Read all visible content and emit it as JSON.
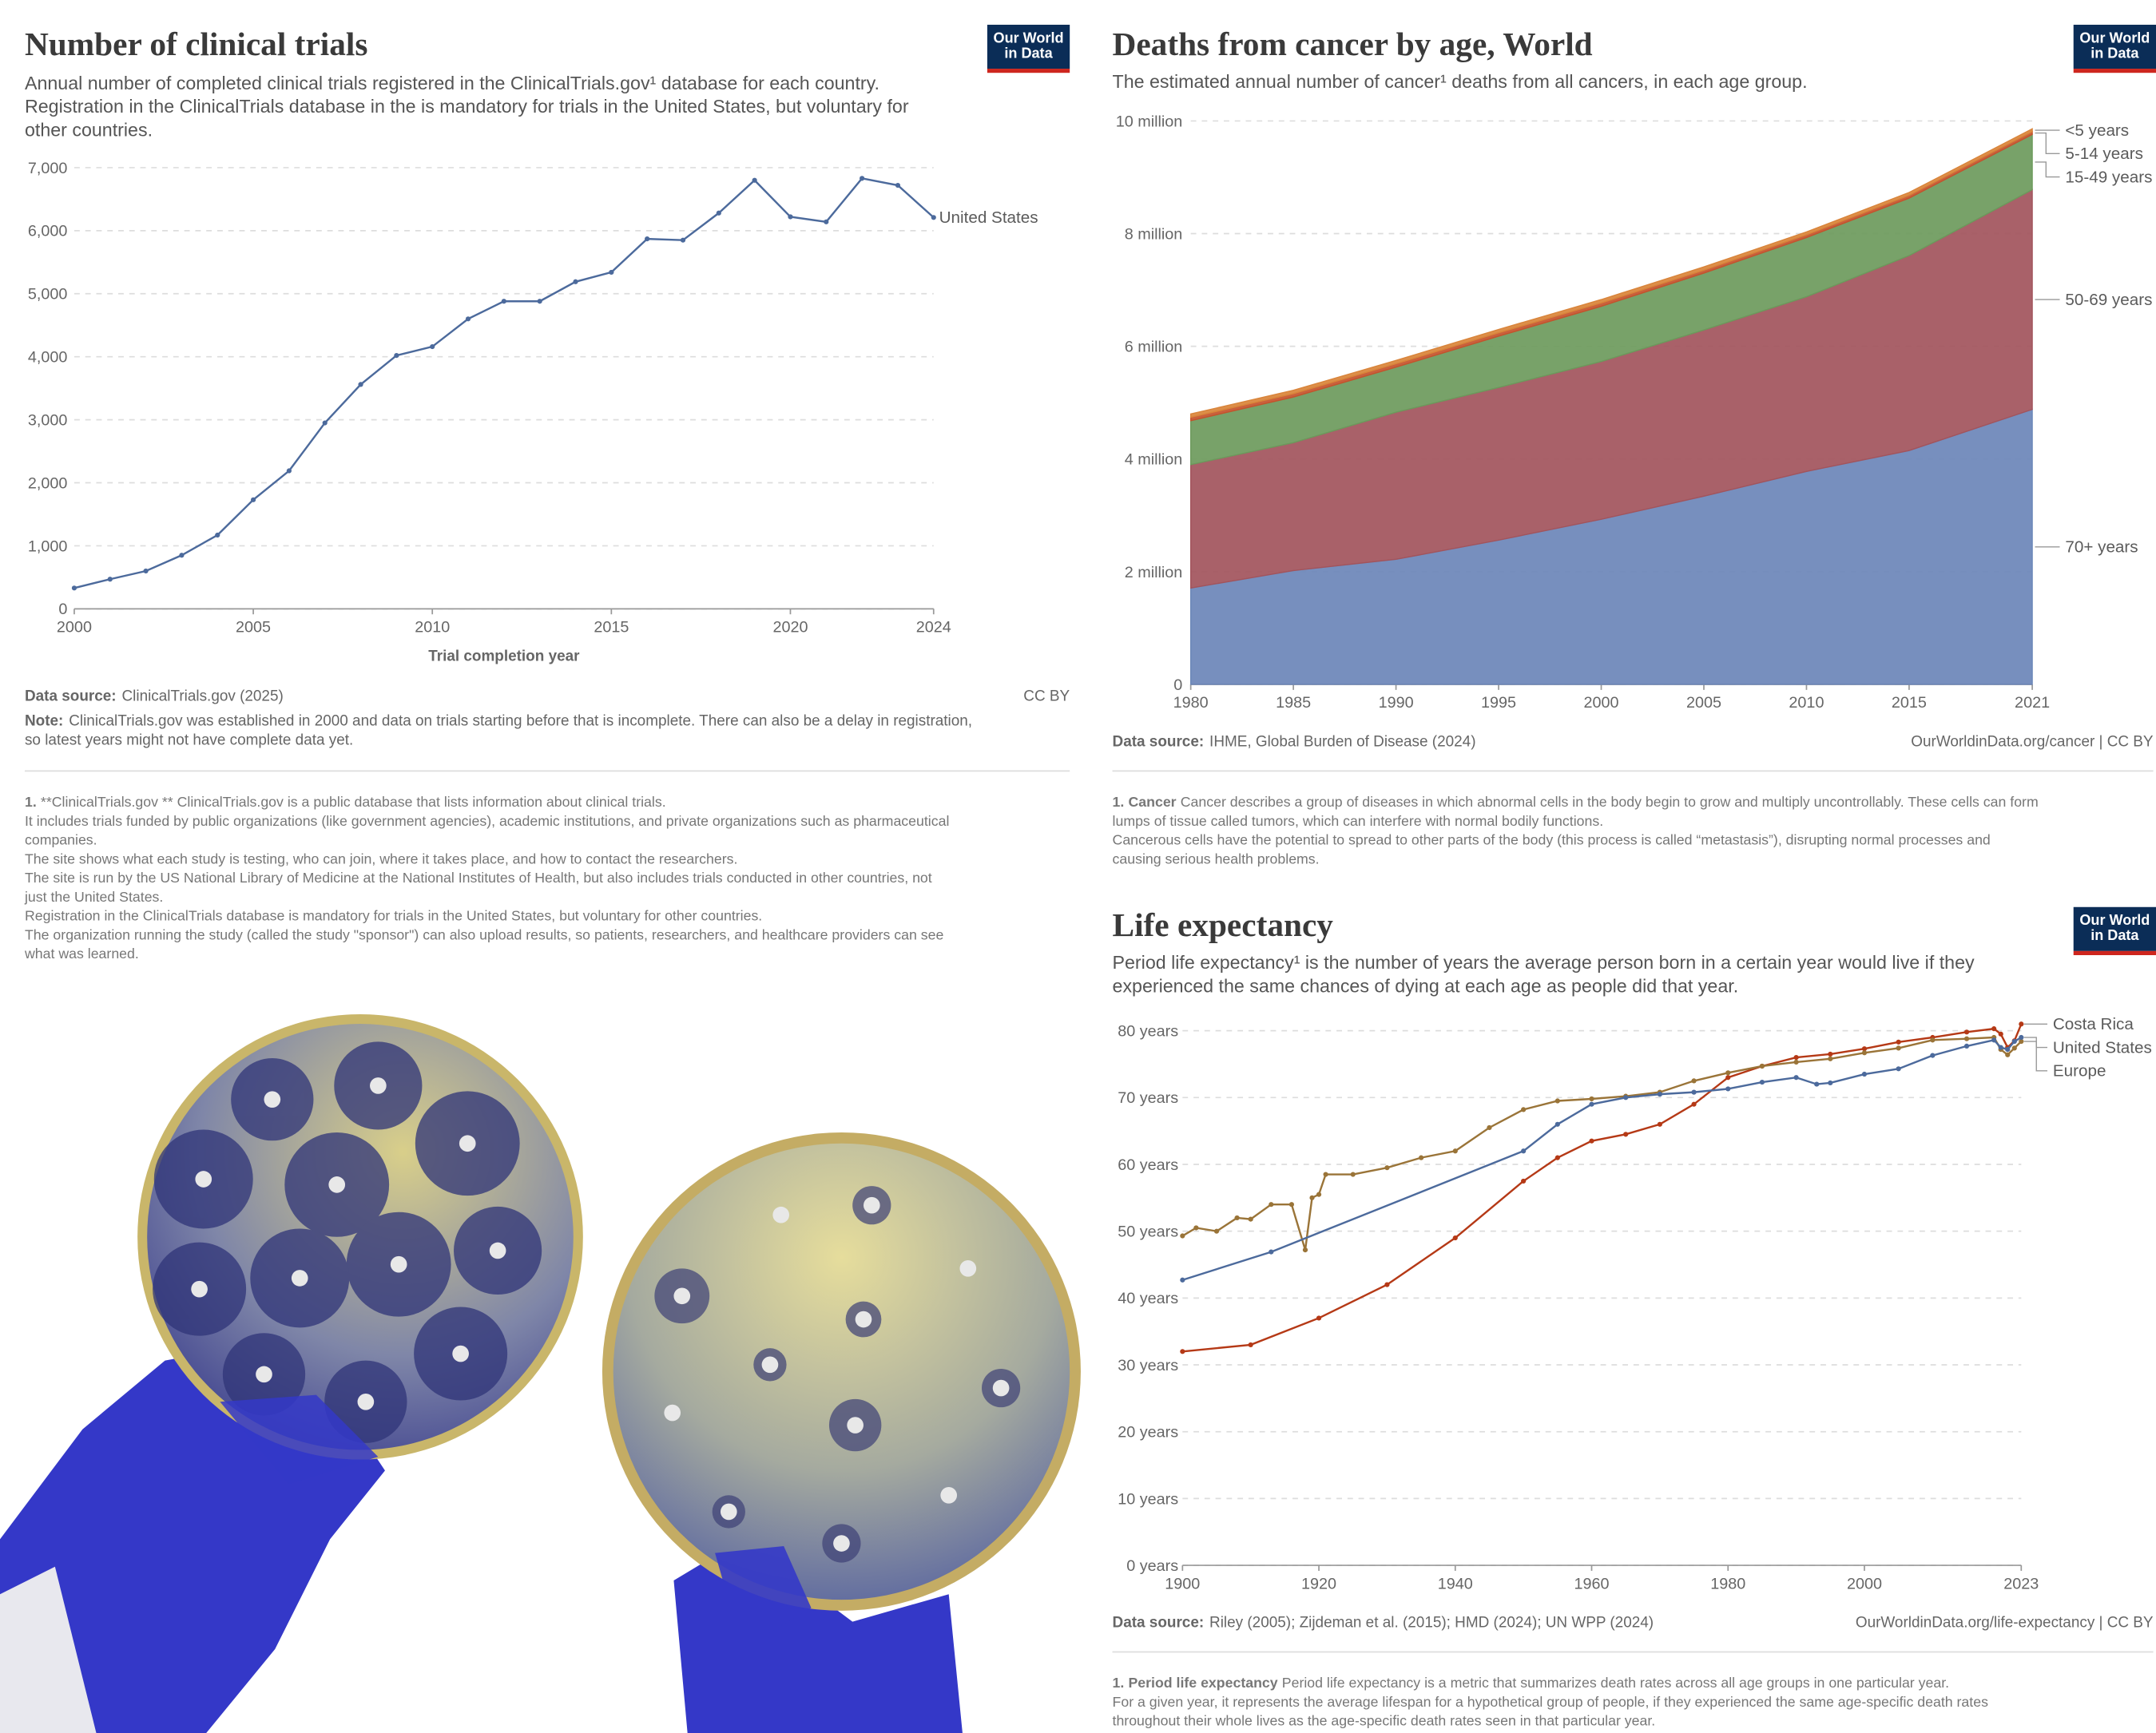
{
  "chart_data": [
    {
      "type": "line",
      "title": "Number of clinical trials",
      "subtitle": [
        "Annual number of completed clinical trials registered in the ClinicalTrials.gov¹ database for each country.",
        "Registration in the ClinicalTrials database in the is mandatory for trials in the United States, but voluntary for",
        "other countries."
      ],
      "logo": [
        "Our World",
        "in Data"
      ],
      "x_label": "Trial completion year",
      "xlim": [
        2000,
        2024
      ],
      "xticks": [
        2000,
        2005,
        2010,
        2015,
        2020,
        2024
      ],
      "ylim": [
        0,
        7000
      ],
      "yticks": [
        0,
        {
          "value": 1000,
          "label": "1,000"
        },
        {
          "value": 2000,
          "label": "2,000"
        },
        {
          "value": 3000,
          "label": "3,000"
        },
        {
          "value": 4000,
          "label": "4,000"
        },
        {
          "value": 5000,
          "label": "5,000"
        },
        {
          "value": 6000,
          "label": "6,000"
        },
        {
          "value": 7000,
          "label": "7,000"
        }
      ],
      "grid": true,
      "series": [
        {
          "name": "United States",
          "color": "#4c6a9c",
          "x": [
            2000,
            2001,
            2002,
            2003,
            2004,
            2005,
            2006,
            2007,
            2008,
            2009,
            2010,
            2011,
            2012,
            2013,
            2014,
            2015,
            2016,
            2017,
            2018,
            2019,
            2020,
            2021,
            2022,
            2023,
            2024
          ],
          "values": [
            330,
            470,
            600,
            850,
            1170,
            1730,
            2190,
            2950,
            3560,
            4020,
            4160,
            4600,
            4880,
            4880,
            5190,
            5340,
            5870,
            5850,
            6280,
            6800,
            6220,
            6140,
            6830,
            6720,
            6210
          ]
        }
      ],
      "source_label": "Data source:",
      "source": "ClinicalTrials.gov (2025)",
      "license": "CC BY",
      "note_label": "Note:",
      "note": [
        "ClinicalTrials.gov was established in 2000 and data on trials starting before that is incomplete. There can also be a delay in registration,",
        "so latest years might not have complete data yet."
      ],
      "footnote": {
        "marker": "1.",
        "lines": [
          "**ClinicalTrials.gov ** ClinicalTrials.gov is a public database that lists information about clinical trials.",
          "It includes trials funded by public organizations (like government agencies), academic institutions, and private organizations such as pharmaceutical",
          "companies.",
          "The site shows what each study is testing, who can join, where it takes place, and how to contact the researchers.",
          "The site is run by the US National Library of Medicine at the National Institutes of Health, but also includes trials conducted in other countries, not",
          "just the United States.",
          "Registration in the ClinicalTrials database is mandatory for trials in the United States, but voluntary for other countries.",
          "The organization running the study (called the study \"sponsor\") can also upload results, so patients, researchers, and healthcare providers can see",
          "what was learned."
        ]
      }
    },
    {
      "type": "area",
      "title": "Deaths from cancer by age, World",
      "subtitle": [
        "The estimated annual number of cancer¹ deaths from all cancers, in each age group."
      ],
      "logo": [
        "Our World",
        "in Data"
      ],
      "stacked": true,
      "x": [
        1980,
        1985,
        1990,
        1995,
        2000,
        2005,
        2010,
        2015,
        2021
      ],
      "xlim": [
        1980,
        2021
      ],
      "xticks": [
        1980,
        1985,
        1990,
        1995,
        2000,
        2005,
        2010,
        2015,
        2021
      ],
      "ylim": [
        0,
        10000000
      ],
      "yticks": [
        0,
        {
          "value": 2000000,
          "label": "2 million"
        },
        {
          "value": 4000000,
          "label": "4 million"
        },
        {
          "value": 6000000,
          "label": "6 million"
        },
        {
          "value": 8000000,
          "label": "8 million"
        },
        {
          "value": 10000000,
          "label": "10 million"
        }
      ],
      "grid": true,
      "series": [
        {
          "name": "70+ years",
          "color": "#6b86b8",
          "values": [
            1710000,
            2020000,
            2220000,
            2560000,
            2930000,
            3340000,
            3780000,
            4150000,
            4880000
          ]
        },
        {
          "name": "50-69 years",
          "color": "#a2545c",
          "values": [
            2190000,
            2270000,
            2610000,
            2710000,
            2800000,
            2950000,
            3100000,
            3460000,
            3900000
          ]
        },
        {
          "name": "15-49 years",
          "color": "#6c9a5c",
          "values": [
            780000,
            810000,
            800000,
            910000,
            980000,
            1010000,
            1050000,
            1020000,
            980000
          ]
        },
        {
          "name": "5-14 years",
          "color": "#c4532c",
          "values": [
            60000,
            60000,
            60000,
            60000,
            60000,
            50000,
            50000,
            50000,
            50000
          ]
        },
        {
          "name": "<5 years",
          "color": "#d9843a",
          "values": [
            60000,
            60000,
            60000,
            60000,
            60000,
            60000,
            50000,
            50000,
            50000
          ]
        }
      ],
      "source_label": "Data source:",
      "source": "IHME, Global Burden of Disease (2024)",
      "license": "OurWorldinData.org/cancer | CC BY",
      "footnote": {
        "marker": "1.",
        "term": "Cancer",
        "lines": [
          "Cancer describes a group of diseases in which abnormal cells in the body begin to grow and multiply uncontrollably. These cells can form",
          "lumps of tissue called tumors, which can interfere with normal bodily functions.",
          "Cancerous cells have the potential to spread to other parts of the body (this process is called “metastasis”), disrupting normal processes and",
          "causing serious health problems."
        ]
      }
    },
    {
      "type": "line",
      "title": "Life expectancy",
      "subtitle": [
        "Period life expectancy¹ is the number of years the average person born in a certain year would live if they",
        "experienced the same chances of dying at each age as people did that year."
      ],
      "logo": [
        "Our World",
        "in Data"
      ],
      "xlim": [
        1900,
        2023
      ],
      "xticks": [
        1900,
        1920,
        1940,
        1960,
        1980,
        2000,
        2023
      ],
      "ylim": [
        0,
        80
      ],
      "yticks": [
        {
          "value": 0,
          "label": "0 years"
        },
        {
          "value": 10,
          "label": "10 years"
        },
        {
          "value": 20,
          "label": "20 years"
        },
        {
          "value": 30,
          "label": "30 years"
        },
        {
          "value": 40,
          "label": "40 years"
        },
        {
          "value": 50,
          "label": "50 years"
        },
        {
          "value": 60,
          "label": "60 years"
        },
        {
          "value": 70,
          "label": "70 years"
        },
        {
          "value": 80,
          "label": "80 years"
        }
      ],
      "grid": true,
      "series": [
        {
          "name": "Costa Rica",
          "color": "#b53916",
          "x": [
            1900,
            1910,
            1920,
            1930,
            1940,
            1950,
            1955,
            1960,
            1965,
            1970,
            1975,
            1980,
            1985,
            1990,
            1995,
            2000,
            2005,
            2010,
            2015,
            2019,
            2020,
            2021,
            2022,
            2023
          ],
          "values": [
            32,
            33,
            37,
            42,
            49,
            57.5,
            61,
            63.5,
            64.5,
            66,
            69,
            73,
            74.7,
            76,
            76.5,
            77.3,
            78.3,
            79,
            79.8,
            80.3,
            79.5,
            77.5,
            78.5,
            81
          ]
        },
        {
          "name": "United States",
          "color": "#9a7438",
          "x": [
            1900,
            1902,
            1905,
            1908,
            1910,
            1913,
            1916,
            1918,
            1919,
            1920,
            1921,
            1925,
            1930,
            1935,
            1940,
            1945,
            1950,
            1955,
            1960,
            1965,
            1970,
            1975,
            1980,
            1985,
            1990,
            1995,
            2000,
            2005,
            2010,
            2015,
            2019,
            2020,
            2021,
            2022,
            2023
          ],
          "values": [
            49.3,
            50.5,
            50,
            52,
            51.8,
            54,
            54,
            47.2,
            55,
            55.5,
            58.5,
            58.5,
            59.5,
            61,
            62,
            65.5,
            68.2,
            69.5,
            69.8,
            70.2,
            70.8,
            72.5,
            73.7,
            74.7,
            75.3,
            75.8,
            76.7,
            77.4,
            78.6,
            78.8,
            79,
            77.2,
            76.4,
            77.4,
            78.4
          ]
        },
        {
          "name": "Europe",
          "color": "#4c6a9c",
          "x": [
            1900,
            1913,
            1950,
            1955,
            1960,
            1965,
            1970,
            1975,
            1980,
            1985,
            1990,
            1993,
            1995,
            2000,
            2005,
            2010,
            2015,
            2019,
            2020,
            2021,
            2022,
            2023
          ],
          "values": [
            42.7,
            46.9,
            62,
            66,
            69,
            70,
            70.5,
            70.8,
            71.3,
            72.3,
            73,
            72,
            72.2,
            73.5,
            74.3,
            76.3,
            77.7,
            78.6,
            77.5,
            77.2,
            78.4,
            79
          ]
        }
      ],
      "source_label": "Data source:",
      "source": "Riley (2005); Zijdeman et al. (2015); HMD (2024); UN WPP (2024)",
      "license": "OurWorldinData.org/life-expectancy | CC BY",
      "footnote": {
        "marker": "1.",
        "term": "Period life expectancy",
        "lines": [
          "Period life expectancy is a metric that summarizes death rates across all age groups in one particular year.",
          "For a given year, it represents the average lifespan for a hypothetical group of people, if they experienced the same age-specific death rates",
          "throughout their whole lives as the age-specific death rates seen in that particular year."
        ]
      }
    }
  ]
}
